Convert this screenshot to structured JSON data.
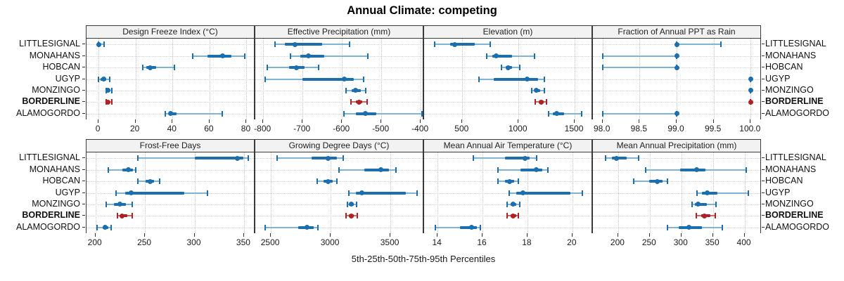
{
  "title": "Annual Climate: competing",
  "xlabel": "5th-25th-50th-75th-95th Percentiles",
  "sites": [
    "LITTLESIGNAL",
    "MONAHANS",
    "HOBCAN",
    "UGYP",
    "MONZINGO",
    "BORDERLINE",
    "ALAMOGORDO"
  ],
  "highlight_site": "BORDERLINE",
  "percentile_labels": [
    "5th",
    "25th",
    "50th",
    "75th",
    "95th"
  ],
  "colors": {
    "series_blue": "#1b6fae",
    "series_blue_light": "#7db4d8",
    "series_red": "#b02025",
    "series_red_light": "#c96b62",
    "header_bg": "#f2f2f2",
    "panel_border": "#3a3a3a",
    "grid": "#c9c9c9"
  },
  "chart_data": {
    "type": "dot-whisker percentile trellis",
    "layout": "2 rows x 4 columns of panels, site labels on both sides",
    "legend_position": "none",
    "grid": "dotted",
    "panels": [
      {
        "title": "Design Freeze Index (°C)",
        "xlim": [
          -6.5,
          84
        ],
        "ticks": [
          0,
          20,
          40,
          60,
          80
        ],
        "tick_labels": [
          "0",
          "20",
          "40",
          "60",
          "80"
        ],
        "values": [
          [
            0,
            0,
            0,
            1,
            3
          ],
          [
            51,
            59,
            67,
            72,
            79
          ],
          [
            24,
            26,
            28,
            31,
            41
          ],
          [
            0,
            1,
            3,
            4,
            6
          ],
          [
            4,
            5,
            5,
            6,
            7
          ],
          [
            4,
            5,
            5,
            6,
            7
          ],
          [
            36,
            38,
            39,
            42,
            67
          ]
        ]
      },
      {
        "title": "Effective Precipitation (mm)",
        "xlim": [
          -820,
          -395
        ],
        "ticks": [
          -800,
          -700,
          -600,
          -500,
          -400
        ],
        "tick_labels": [
          "-800",
          "-700",
          "-600",
          "-500",
          "-400"
        ],
        "values": [
          [
            -770,
            -745,
            -720,
            -650,
            -580
          ],
          [
            -730,
            -705,
            -685,
            -645,
            -535
          ],
          [
            -790,
            -735,
            -715,
            -695,
            -660
          ],
          [
            -795,
            -700,
            -595,
            -570,
            -545
          ],
          [
            -590,
            -575,
            -565,
            -553,
            -540
          ],
          [
            -577,
            -565,
            -556,
            -548,
            -536
          ],
          [
            -595,
            -565,
            -540,
            -512,
            -397
          ]
        ]
      },
      {
        "title": "Elevation (m)",
        "xlim": [
          160,
          1650
        ],
        "ticks": [
          500,
          1000,
          1500
        ],
        "tick_labels": [
          "500",
          "1000",
          "1500"
        ],
        "values": [
          [
            255,
            390,
            430,
            610,
            750
          ],
          [
            720,
            765,
            800,
            945,
            1140
          ],
          [
            850,
            885,
            910,
            940,
            1010
          ],
          [
            650,
            780,
            1080,
            1175,
            1230
          ],
          [
            1120,
            1145,
            1160,
            1190,
            1230
          ],
          [
            1150,
            1180,
            1200,
            1222,
            1248
          ],
          [
            1270,
            1305,
            1340,
            1405,
            1560
          ]
        ]
      },
      {
        "title": "Fraction of Annual PPT as Rain",
        "xlim": [
          97.87,
          100.13
        ],
        "ticks": [
          98.0,
          98.5,
          99.0,
          99.5,
          100.0
        ],
        "tick_labels": [
          "98.0",
          "98.5",
          "99.0",
          "99.5",
          "100.0"
        ],
        "values": [
          [
            99.0,
            99.0,
            99.0,
            99.0,
            99.6
          ],
          [
            98.0,
            99.0,
            99.0,
            99.0,
            99.0
          ],
          [
            98.0,
            99.0,
            99.0,
            99.0,
            99.0
          ],
          [
            100.0,
            100.0,
            100.0,
            100.0,
            100.0
          ],
          [
            100.0,
            100.0,
            100.0,
            100.0,
            100.0
          ],
          [
            100.0,
            100.0,
            100.0,
            100.0,
            100.0
          ],
          [
            98.0,
            99.0,
            99.0,
            99.0,
            99.0
          ]
        ]
      },
      {
        "title": "Frost-Free Days",
        "xlim": [
          191,
          360
        ],
        "ticks": [
          200,
          250,
          300,
          350
        ],
        "tick_labels": [
          "200",
          "250",
          "300",
          "350"
        ],
        "values": [
          [
            243,
            300,
            343,
            349,
            354
          ],
          [
            213,
            227,
            233,
            238,
            241
          ],
          [
            243,
            251,
            255,
            259,
            265
          ],
          [
            221,
            230,
            236,
            290,
            313
          ],
          [
            211,
            219,
            225,
            231,
            237
          ],
          [
            222,
            225,
            227,
            232,
            237
          ],
          [
            202,
            207,
            210,
            213,
            216
          ]
        ]
      },
      {
        "title": "Growing Degree Days (°C)",
        "xlim": [
          2370,
          3770
        ],
        "ticks": [
          2500,
          3000,
          3500
        ],
        "tick_labels": [
          "2500",
          "3000",
          "3500"
        ],
        "values": [
          [
            2550,
            2840,
            2980,
            3050,
            3105
          ],
          [
            3070,
            3280,
            3420,
            3490,
            3545
          ],
          [
            2890,
            2940,
            2980,
            3020,
            3055
          ],
          [
            3150,
            3210,
            3260,
            3630,
            3720
          ],
          [
            3140,
            3155,
            3170,
            3195,
            3215
          ],
          [
            3130,
            3152,
            3170,
            3196,
            3220
          ],
          [
            2450,
            2730,
            2800,
            2860,
            2895
          ]
        ]
      },
      {
        "title": "Mean Annual Air Temperature (°C)",
        "xlim": [
          13.4,
          20.85
        ],
        "ticks": [
          14,
          16,
          18,
          20
        ],
        "tick_labels": [
          "14",
          "16",
          "18",
          "20"
        ],
        "values": [
          [
            15.6,
            17.0,
            17.9,
            18.1,
            18.4
          ],
          [
            16.7,
            17.7,
            18.4,
            18.65,
            18.9
          ],
          [
            16.7,
            17.0,
            17.2,
            17.4,
            17.6
          ],
          [
            17.2,
            17.5,
            17.8,
            19.9,
            20.45
          ],
          [
            17.1,
            17.25,
            17.35,
            17.5,
            17.65
          ],
          [
            17.1,
            17.25,
            17.35,
            17.5,
            17.6
          ],
          [
            13.9,
            15.0,
            15.5,
            15.75,
            15.9
          ]
        ]
      },
      {
        "title": "Mean Annual Precipitation (mm)",
        "xlim": [
          160,
          425
        ],
        "ticks": [
          200,
          250,
          300,
          350,
          400
        ],
        "tick_labels": [
          "200",
          "250",
          "300",
          "350",
          "400"
        ],
        "values": [
          [
            180,
            190,
            197,
            214,
            232
          ],
          [
            244,
            298,
            324,
            338,
            403
          ],
          [
            225,
            249,
            262,
            270,
            278
          ],
          [
            325,
            333,
            341,
            357,
            406
          ],
          [
            317,
            322,
            327,
            340,
            355
          ],
          [
            324,
            331,
            337,
            346,
            354
          ],
          [
            278,
            296,
            312,
            333,
            365
          ]
        ]
      }
    ]
  }
}
